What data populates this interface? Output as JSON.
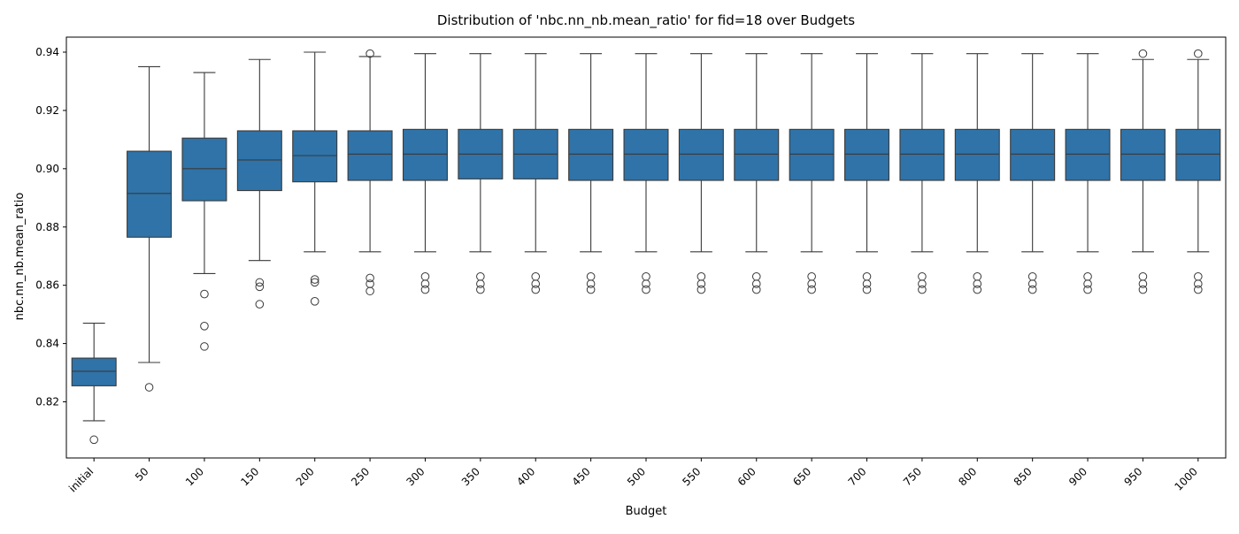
{
  "chart_data": {
    "type": "box",
    "title": "Distribution of 'nbc.nn_nb.mean_ratio' for fid=18 over Budgets",
    "xlabel": "Budget",
    "ylabel": "nbc.nn_nb.mean_ratio",
    "ylim": [
      0.8,
      0.945
    ],
    "yticks": [
      0.82,
      0.84,
      0.86,
      0.88,
      0.9,
      0.92,
      0.94
    ],
    "ytick_labels": [
      "0.82",
      "0.84",
      "0.86",
      "0.88",
      "0.90",
      "0.92",
      "0.94"
    ],
    "grid": false,
    "legend": "none",
    "box_color": "#2f73a8",
    "line_color": "#3a3a3a",
    "categories": [
      "initial",
      "50",
      "100",
      "150",
      "200",
      "250",
      "300",
      "350",
      "400",
      "450",
      "500",
      "550",
      "600",
      "650",
      "700",
      "750",
      "800",
      "850",
      "900",
      "950",
      "1000"
    ],
    "boxes": [
      {
        "whislo": 0.8135,
        "q1": 0.8255,
        "med": 0.8305,
        "q3": 0.835,
        "whishi": 0.847,
        "fliers": [
          0.807
        ]
      },
      {
        "whislo": 0.8335,
        "q1": 0.8765,
        "med": 0.8915,
        "q3": 0.906,
        "whishi": 0.935,
        "fliers": [
          0.825
        ]
      },
      {
        "whislo": 0.864,
        "q1": 0.889,
        "med": 0.9,
        "q3": 0.9105,
        "whishi": 0.933,
        "fliers": [
          0.857,
          0.846,
          0.839
        ]
      },
      {
        "whislo": 0.8685,
        "q1": 0.8925,
        "med": 0.903,
        "q3": 0.913,
        "whishi": 0.9375,
        "fliers": [
          0.861,
          0.8595,
          0.8535
        ]
      },
      {
        "whislo": 0.8715,
        "q1": 0.8955,
        "med": 0.9045,
        "q3": 0.913,
        "whishi": 0.94,
        "fliers": [
          0.862,
          0.861,
          0.8545
        ]
      },
      {
        "whislo": 0.8715,
        "q1": 0.896,
        "med": 0.905,
        "q3": 0.913,
        "whishi": 0.9385,
        "fliers": [
          0.9395,
          0.8625,
          0.8605,
          0.858
        ]
      },
      {
        "whislo": 0.8715,
        "q1": 0.896,
        "med": 0.905,
        "q3": 0.9135,
        "whishi": 0.9395,
        "fliers": [
          0.863,
          0.8605,
          0.8585
        ]
      },
      {
        "whislo": 0.8715,
        "q1": 0.8965,
        "med": 0.905,
        "q3": 0.9135,
        "whishi": 0.9395,
        "fliers": [
          0.863,
          0.8605,
          0.8585
        ]
      },
      {
        "whislo": 0.8715,
        "q1": 0.8965,
        "med": 0.905,
        "q3": 0.9135,
        "whishi": 0.9395,
        "fliers": [
          0.863,
          0.8605,
          0.8585
        ]
      },
      {
        "whislo": 0.8715,
        "q1": 0.896,
        "med": 0.905,
        "q3": 0.9135,
        "whishi": 0.9395,
        "fliers": [
          0.863,
          0.8605,
          0.8585
        ]
      },
      {
        "whislo": 0.8715,
        "q1": 0.896,
        "med": 0.905,
        "q3": 0.9135,
        "whishi": 0.9395,
        "fliers": [
          0.863,
          0.8605,
          0.8585
        ]
      },
      {
        "whislo": 0.8715,
        "q1": 0.896,
        "med": 0.905,
        "q3": 0.9135,
        "whishi": 0.9395,
        "fliers": [
          0.863,
          0.8605,
          0.8585
        ]
      },
      {
        "whislo": 0.8715,
        "q1": 0.896,
        "med": 0.905,
        "q3": 0.9135,
        "whishi": 0.9395,
        "fliers": [
          0.863,
          0.8605,
          0.8585
        ]
      },
      {
        "whislo": 0.8715,
        "q1": 0.896,
        "med": 0.905,
        "q3": 0.9135,
        "whishi": 0.9395,
        "fliers": [
          0.863,
          0.8605,
          0.8585
        ]
      },
      {
        "whislo": 0.8715,
        "q1": 0.896,
        "med": 0.905,
        "q3": 0.9135,
        "whishi": 0.9395,
        "fliers": [
          0.863,
          0.8605,
          0.8585
        ]
      },
      {
        "whislo": 0.8715,
        "q1": 0.896,
        "med": 0.905,
        "q3": 0.9135,
        "whishi": 0.9395,
        "fliers": [
          0.863,
          0.8605,
          0.8585
        ]
      },
      {
        "whislo": 0.8715,
        "q1": 0.896,
        "med": 0.905,
        "q3": 0.9135,
        "whishi": 0.9395,
        "fliers": [
          0.863,
          0.8605,
          0.8585
        ]
      },
      {
        "whislo": 0.8715,
        "q1": 0.896,
        "med": 0.905,
        "q3": 0.9135,
        "whishi": 0.9395,
        "fliers": [
          0.863,
          0.8605,
          0.8585
        ]
      },
      {
        "whislo": 0.8715,
        "q1": 0.896,
        "med": 0.905,
        "q3": 0.9135,
        "whishi": 0.9395,
        "fliers": [
          0.863,
          0.8605,
          0.8585
        ]
      },
      {
        "whislo": 0.8715,
        "q1": 0.896,
        "med": 0.905,
        "q3": 0.9135,
        "whishi": 0.9375,
        "fliers": [
          0.9395,
          0.863,
          0.8605,
          0.8585
        ]
      },
      {
        "whislo": 0.8715,
        "q1": 0.896,
        "med": 0.905,
        "q3": 0.9135,
        "whishi": 0.9375,
        "fliers": [
          0.9395,
          0.863,
          0.8605,
          0.8585
        ]
      }
    ]
  }
}
